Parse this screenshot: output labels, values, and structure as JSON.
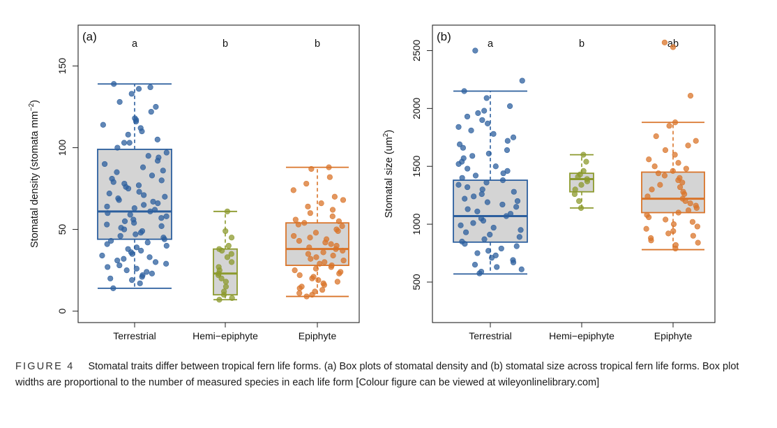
{
  "figure": {
    "caption_label": "FIGURE 4",
    "caption_text": "Stomatal traits differ between tropical fern life forms. (a) Box plots of stomatal density and (b) stomatal size across tropical fern life forms. Box plot widths are proportional to the number of measured species in each life form [Colour figure can be viewed at wileyonlinelibrary.com]"
  },
  "colors": {
    "Terrestrial": "#2c5f9e",
    "Hemi-epiphyte": "#8c9a2e",
    "Epiphyte": "#d9742a",
    "box_fill": "#d4d4d4"
  },
  "chart_data": [
    {
      "type": "box",
      "panel_label": "(a)",
      "ylabel": "Stomatal density  (stomata mm",
      "ylabel_sup": "−2",
      "ylabel_end": ")",
      "categories": [
        "Terrestrial",
        "Hemi−epiphyte",
        "Epiphyte"
      ],
      "yticks": [
        0,
        50,
        100,
        150
      ],
      "ylim": [
        -7,
        175
      ],
      "letters": [
        "a",
        "b",
        "b"
      ],
      "boxes": [
        {
          "name": "Terrestrial",
          "whisker_low": 14,
          "q1": 44,
          "median": 61,
          "q3": 99,
          "whisker_high": 139
        },
        {
          "name": "Hemi-epiphyte",
          "whisker_low": 7,
          "q1": 10,
          "median": 23,
          "q3": 38,
          "whisker_high": 61
        },
        {
          "name": "Epiphyte",
          "whisker_low": 9,
          "q1": 28,
          "median": 38,
          "q3": 54,
          "whisker_high": 88
        }
      ],
      "points": [
        [
          139,
          137,
          136,
          133,
          128,
          125,
          122,
          118,
          117,
          116,
          114,
          112,
          110,
          108,
          105,
          103,
          103,
          100,
          97,
          95,
          94,
          92,
          90,
          88,
          86,
          85,
          83,
          81,
          80,
          79,
          78,
          77,
          76,
          75,
          73,
          72,
          71,
          70,
          69,
          68,
          67,
          66,
          65,
          64,
          63,
          62,
          61,
          60,
          59,
          58,
          57,
          56,
          55,
          54,
          53,
          52,
          51,
          50,
          49,
          48,
          47,
          46,
          45,
          44,
          43,
          42,
          41,
          40,
          39,
          38,
          37,
          36,
          35,
          34,
          33,
          32,
          31,
          30,
          29,
          28,
          27,
          26,
          25,
          24,
          23,
          22,
          21,
          20,
          19,
          17,
          14
        ],
        [
          61,
          49,
          45,
          40,
          38,
          37,
          35,
          33,
          30,
          27,
          25,
          23,
          22,
          20,
          18,
          15,
          12,
          10,
          8,
          7
        ],
        [
          88,
          87,
          82,
          78,
          74,
          70,
          68,
          66,
          64,
          62,
          60,
          58,
          56,
          55,
          54,
          53,
          52,
          50,
          49,
          48,
          46,
          45,
          44,
          43,
          42,
          41,
          40,
          39,
          38,
          37,
          36,
          35,
          34,
          33,
          32,
          31,
          30,
          29,
          28,
          27,
          26,
          25,
          24,
          23,
          22,
          21,
          20,
          19,
          18,
          17,
          16,
          15,
          14,
          13,
          12,
          11,
          10,
          9
        ]
      ]
    },
    {
      "type": "box",
      "panel_label": "(b)",
      "ylabel": "Stomatal size  (um",
      "ylabel_sup": "2",
      "ylabel_end": ")",
      "categories": [
        "Terrestrial",
        "Hemi−epiphyte",
        "Epiphyte"
      ],
      "yticks": [
        500,
        1000,
        1500,
        2000,
        2500
      ],
      "ylim": [
        150,
        2720
      ],
      "letters": [
        "a",
        "b",
        "ab"
      ],
      "boxes": [
        {
          "name": "Terrestrial",
          "whisker_low": 570,
          "q1": 845,
          "median": 1070,
          "q3": 1380,
          "whisker_high": 2150
        },
        {
          "name": "Hemi-epiphyte",
          "whisker_low": 1140,
          "q1": 1280,
          "median": 1390,
          "q3": 1440,
          "whisker_high": 1600
        },
        {
          "name": "Epiphyte",
          "whisker_low": 780,
          "q1": 1100,
          "median": 1220,
          "q3": 1450,
          "whisker_high": 1880
        }
      ],
      "points": [
        [
          2500,
          2240,
          2150,
          2090,
          2020,
          1980,
          1960,
          1930,
          1900,
          1870,
          1840,
          1810,
          1780,
          1750,
          1720,
          1690,
          1660,
          1640,
          1610,
          1590,
          1570,
          1540,
          1520,
          1500,
          1480,
          1460,
          1440,
          1420,
          1400,
          1380,
          1360,
          1340,
          1320,
          1300,
          1280,
          1260,
          1240,
          1220,
          1200,
          1190,
          1170,
          1150,
          1130,
          1110,
          1090,
          1070,
          1050,
          1030,
          1010,
          990,
          970,
          950,
          930,
          910,
          890,
          870,
          850,
          830,
          810,
          790,
          770,
          750,
          730,
          710,
          690,
          670,
          650,
          630,
          610,
          590,
          575
        ],
        [
          1600,
          1540,
          1460,
          1430,
          1410,
          1390,
          1370,
          1340,
          1300,
          1260,
          1200,
          1140
        ],
        [
          2570,
          2530,
          2110,
          1880,
          1850,
          1760,
          1720,
          1680,
          1640,
          1600,
          1560,
          1530,
          1500,
          1480,
          1460,
          1440,
          1420,
          1400,
          1380,
          1360,
          1340,
          1320,
          1300,
          1280,
          1260,
          1240,
          1220,
          1200,
          1180,
          1160,
          1140,
          1120,
          1100,
          1080,
          1060,
          1040,
          1020,
          1000,
          980,
          960,
          940,
          920,
          900,
          880,
          860,
          840,
          820,
          790
        ]
      ]
    }
  ]
}
